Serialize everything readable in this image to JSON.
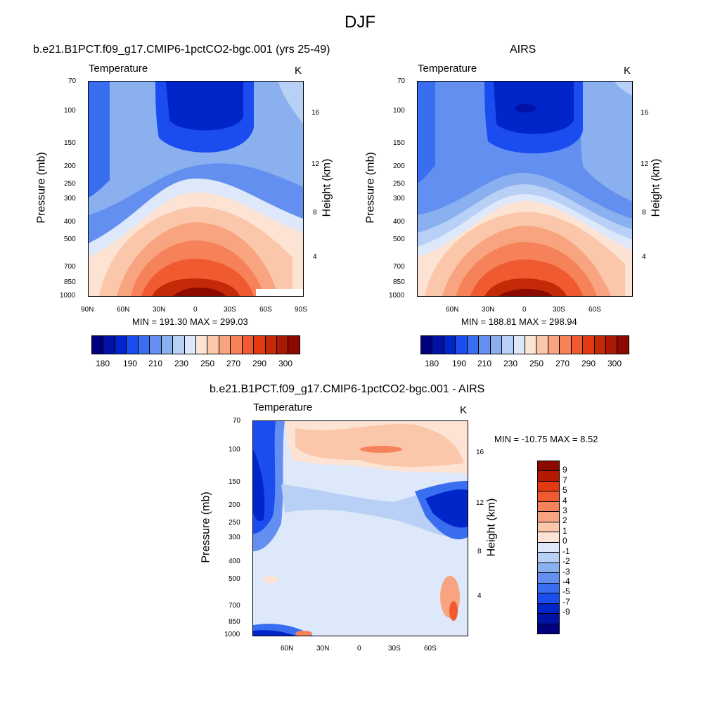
{
  "figure": {
    "title": "DJF",
    "variable": "Temperature",
    "unit": "K",
    "ylabel_left": "Pressure (mb)",
    "ylabel_right": "Height (km)",
    "pressure_ticks": [
      "70",
      "100",
      "150",
      "200",
      "250",
      "300",
      "400",
      "500",
      "700",
      "850",
      "1000"
    ],
    "height_ticks": [
      "4",
      "8",
      "12",
      "16"
    ]
  },
  "panels": {
    "model": {
      "title": "b.e21.B1PCT.f09_g17.CMIP6-1pctCO2-bgc.001 (yrs 25-49)",
      "minmax": "MIN = 191.30  MAX = 299.03",
      "lat_ticks": [
        "90N",
        "60N",
        "30N",
        "0",
        "30S",
        "60S",
        "90S"
      ]
    },
    "obs": {
      "title": "AIRS",
      "minmax": "MIN = 188.81  MAX = 298.94",
      "lat_ticks": [
        "60N",
        "30N",
        "0",
        "30S",
        "60S"
      ]
    },
    "diff": {
      "title": "b.e21.B1PCT.f09_g17.CMIP6-1pctCO2-bgc.001 - AIRS",
      "minmax": "MIN = -10.75  MAX =   8.52",
      "lat_ticks": [
        "60N",
        "30N",
        "0",
        "30S",
        "60S"
      ]
    }
  },
  "colorbars": {
    "temperature": {
      "colors": [
        "#00007f",
        "#0013a6",
        "#0026c9",
        "#1a4cf0",
        "#3a6ef0",
        "#6390f0",
        "#8bb0f0",
        "#b8d0f5",
        "#dde8fa",
        "#fde3d3",
        "#fbc7aa",
        "#f9a480",
        "#f6825a",
        "#f05a30",
        "#e43a10",
        "#c42a08",
        "#a81a04",
        "#8c0a00"
      ],
      "labels": [
        "180",
        "190",
        "210",
        "230",
        "250",
        "270",
        "290",
        "300"
      ]
    },
    "difference": {
      "colors": [
        "#8c0a00",
        "#b41a02",
        "#e43a10",
        "#f05a30",
        "#f6825a",
        "#f9a480",
        "#fbc7aa",
        "#fde3d3",
        "#dde8fa",
        "#b8d0f5",
        "#8bb0f0",
        "#6390f0",
        "#3a6ef0",
        "#1a4cf0",
        "#0026c9",
        "#0013a6",
        "#00007f"
      ],
      "labels": [
        "9",
        "7",
        "5",
        "4",
        "3",
        "2",
        "1",
        "0",
        "-1",
        "-2",
        "-3",
        "-4",
        "-5",
        "-7",
        "-9"
      ]
    }
  },
  "chart_data": [
    {
      "type": "heatmap",
      "title": "b.e21.B1PCT.f09_g17.CMIP6-1pctCO2-bgc.001 (yrs 25-49)",
      "subtitle": "Temperature",
      "unit": "K",
      "xlabel": "",
      "ylabel": "Pressure (mb)",
      "ylabel_right": "Height (km)",
      "x_ticks": [
        "90N",
        "60N",
        "30N",
        "0",
        "30S",
        "60S",
        "90S"
      ],
      "y_ticks": [
        70,
        100,
        150,
        200,
        250,
        300,
        400,
        500,
        700,
        850,
        1000
      ],
      "y_scale": "log",
      "ylim": [
        1000,
        70
      ],
      "min": 191.3,
      "max": 299.03,
      "description_values": {
        "tropical_tropopause_100mb_min": 191.3,
        "tropical_surface_max": 299.03
      }
    },
    {
      "type": "heatmap",
      "title": "AIRS",
      "subtitle": "Temperature",
      "unit": "K",
      "xlabel": "",
      "ylabel": "Pressure (mb)",
      "ylabel_right": "Height (km)",
      "x_ticks": [
        "60N",
        "30N",
        "0",
        "30S",
        "60S"
      ],
      "y_ticks": [
        70,
        100,
        150,
        200,
        250,
        300,
        400,
        500,
        700,
        850,
        1000
      ],
      "y_scale": "log",
      "ylim": [
        1000,
        70
      ],
      "min": 188.81,
      "max": 298.94
    },
    {
      "type": "heatmap",
      "title": "b.e21.B1PCT.f09_g17.CMIP6-1pctCO2-bgc.001 - AIRS",
      "subtitle": "Temperature",
      "unit": "K",
      "xlabel": "",
      "ylabel": "Pressure (mb)",
      "ylabel_right": "Height (km)",
      "x_ticks": [
        "60N",
        "30N",
        "0",
        "30S",
        "60S"
      ],
      "y_ticks": [
        70,
        100,
        150,
        200,
        250,
        300,
        400,
        500,
        700,
        850,
        1000
      ],
      "y_scale": "log",
      "ylim": [
        1000,
        70
      ],
      "min": -10.75,
      "max": 8.52,
      "contour_levels": [
        -9,
        -7,
        -5,
        -4,
        -3,
        -2,
        -1,
        0,
        1,
        2,
        3,
        4,
        5,
        7,
        9
      ]
    }
  ]
}
